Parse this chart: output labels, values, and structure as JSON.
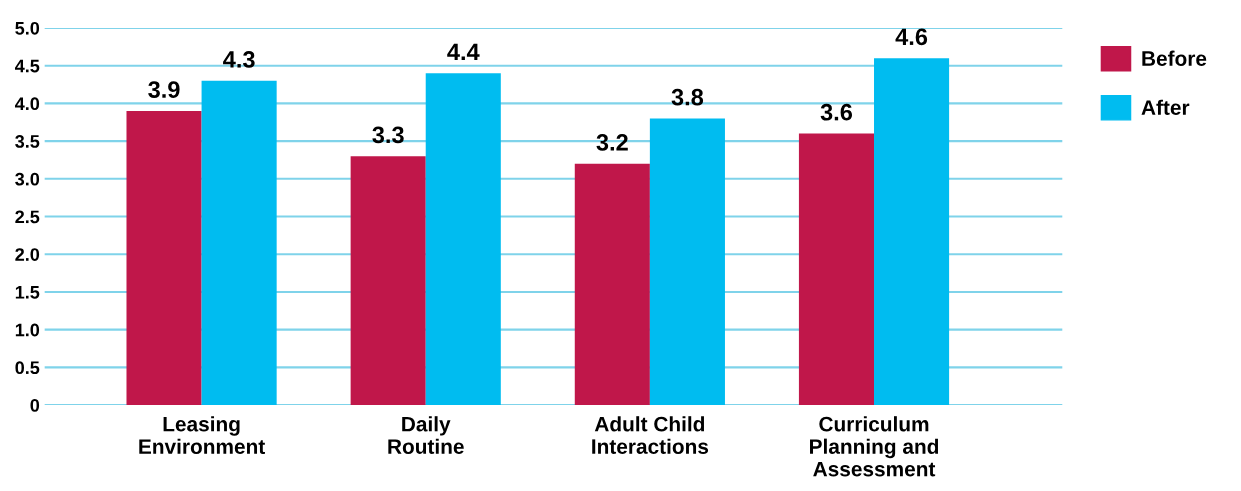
{
  "chart_data": {
    "type": "bar",
    "categories": [
      "Leasing\nEnvironment",
      "Daily\nRoutine",
      "Adult Child\nInteractions",
      "Curriculum\nPlanning and\nAssessment"
    ],
    "series": [
      {
        "name": "Before",
        "color": "#c0174a",
        "values": [
          3.9,
          3.3,
          3.2,
          3.6
        ]
      },
      {
        "name": "After",
        "color": "#00bcf0",
        "values": [
          4.3,
          4.4,
          3.8,
          4.6
        ]
      }
    ],
    "ylim": [
      0,
      5
    ],
    "yticks": [
      0,
      0.5,
      {
        "value": 1,
        "label": "1.0"
      },
      1.5,
      {
        "value": 2,
        "label": "2.0"
      },
      2.5,
      {
        "value": 3,
        "label": "3.0"
      },
      3.5,
      {
        "value": 4,
        "label": "4.0"
      },
      4.5,
      {
        "value": 5,
        "label": "5.0"
      }
    ],
    "grid": "y",
    "legend": "top right",
    "data_labels": true
  }
}
